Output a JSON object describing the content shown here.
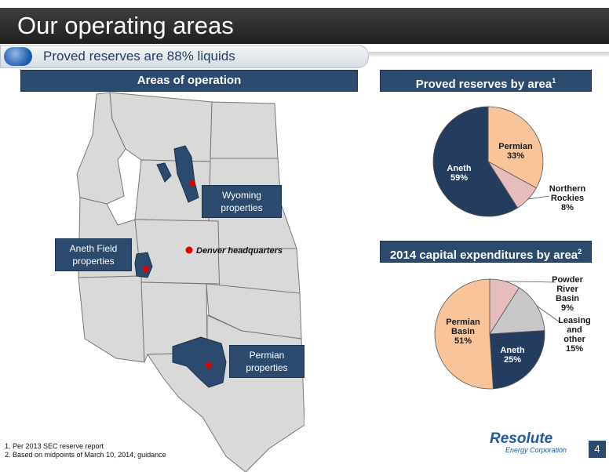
{
  "title": "Our operating areas",
  "subtitle": "Proved reserves are 88% liquids",
  "left_header": "Areas of operation",
  "map_labels": {
    "wyoming": "Wyoming properties",
    "aneth": "Aneth Field properties",
    "permian": "Permian properties",
    "denver": "Denver headquarters"
  },
  "chart_data": [
    {
      "type": "pie",
      "title": "Proved reserves by area",
      "title_sup": "1",
      "slices": [
        {
          "label": "Permian",
          "value": 33,
          "text": "33%",
          "color": "#f9c49a"
        },
        {
          "label": "Northern Rockies",
          "value": 8,
          "text": "8%",
          "color": "#e6bcbc"
        },
        {
          "label": "Aneth",
          "value": 59,
          "text": "59%",
          "color": "#243c5e"
        }
      ]
    },
    {
      "type": "pie",
      "title": "2014 capital expenditures by area",
      "title_sup": "2",
      "slices": [
        {
          "label": "Powder River Basin",
          "value": 9,
          "text": "9%",
          "color": "#e6bcbc"
        },
        {
          "label": "Leasing and other",
          "value": 15,
          "text": "15%",
          "color": "#c8c8c8"
        },
        {
          "label": "Aneth",
          "value": 25,
          "text": "25%",
          "color": "#243c5e"
        },
        {
          "label": "Permian Basin",
          "value": 51,
          "text": "51%",
          "color": "#f9c49a"
        }
      ]
    }
  ],
  "footnotes": [
    "1. Per 2013 SEC reserve report",
    "2. Based on midpoints of March 10, 2014, guidance"
  ],
  "logo": {
    "name": "Resolute",
    "tagline": "Energy Corporation"
  },
  "page_number": "4"
}
